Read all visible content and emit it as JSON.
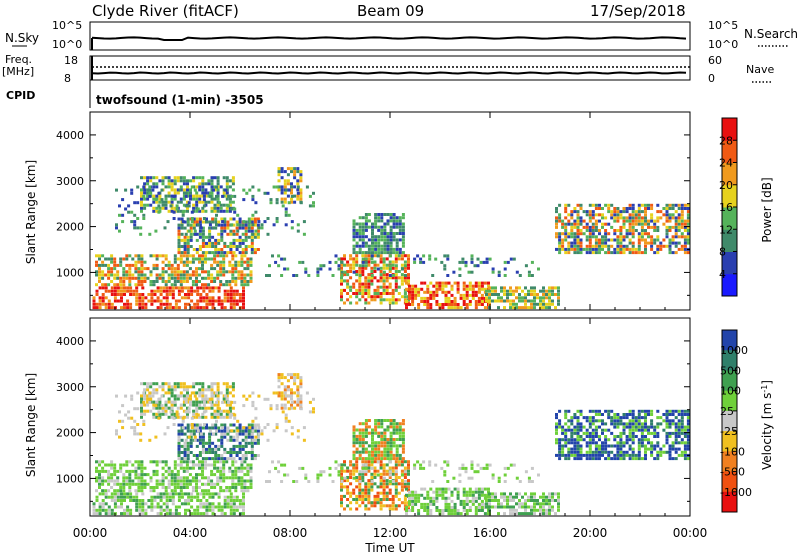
{
  "header": {
    "station": "Clyde River (fitACF)",
    "beam": "Beam 09",
    "date": "17/Sep/2018"
  },
  "noise_panel": {
    "left_label": "N.Sky",
    "left_tick_top": "10^5",
    "left_tick_bottom": "10^0",
    "right_label": "N.Search",
    "right_tick_top": "10^5",
    "right_tick_bottom": "10^0"
  },
  "freq_panel": {
    "left_label_1": "Freq.",
    "left_label_2": "[MHz]",
    "left_tick_top": "18",
    "left_tick_bottom": "8",
    "right_label": "Nave",
    "right_tick_top": "60",
    "right_tick_bottom": "0",
    "cpid_label": "CPID",
    "cpid_text": "twofsound (1-min) -3505"
  },
  "chart_data": [
    {
      "type": "heatmap",
      "name": "power",
      "ylabel": "Slant Range [km]",
      "ylim": [
        180,
        4500
      ],
      "yticks": [
        "1000",
        "2000",
        "3000",
        "4000"
      ],
      "xlim_hours": [
        0,
        24
      ],
      "colorbar_label": "Power [dB]",
      "colorbar_ticks": [
        "4",
        "8",
        "12",
        "16",
        "20",
        "24",
        "28"
      ],
      "colors": [
        "#1a1aff",
        "#2a3fb0",
        "#3f8a6a",
        "#55b35a",
        "#e6d21e",
        "#f09a1e",
        "#f05a14",
        "#e81010"
      ]
    },
    {
      "type": "heatmap",
      "name": "velocity",
      "ylabel": "Slant Range [km]",
      "ylim": [
        180,
        4500
      ],
      "yticks": [
        "1000",
        "2000",
        "3000",
        "4000"
      ],
      "xlabel": "Time UT",
      "xticks": [
        "00:00",
        "04:00",
        "08:00",
        "12:00",
        "16:00",
        "20:00",
        "00:00"
      ],
      "colorbar_label": "Velocity [m s",
      "colorbar_label_sup": "-1",
      "colorbar_label_end": "]",
      "colorbar_ticks": [
        "1000",
        "500",
        "100",
        "25",
        "-25",
        "-100",
        "-500",
        "-1000"
      ],
      "colors": [
        "#2244aa",
        "#2f7f6a",
        "#3fa050",
        "#6fd03a",
        "#c8c8c8",
        "#f0c020",
        "#f08020",
        "#f05010",
        "#e81010"
      ]
    }
  ]
}
